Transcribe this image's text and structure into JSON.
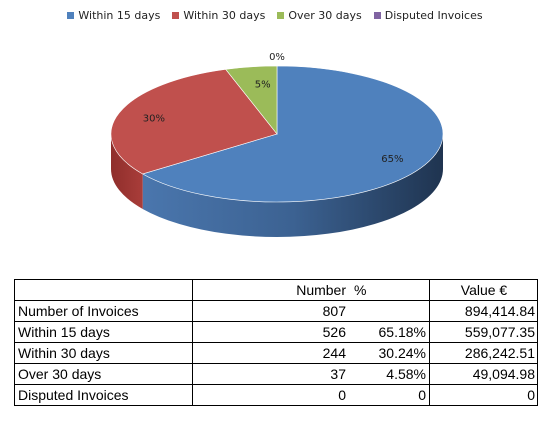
{
  "chart_data": {
    "type": "pie",
    "legend_position": "top",
    "slices": [
      {
        "name": "Within 15 days",
        "value": 65,
        "label": "65%",
        "color": "#4F81BD"
      },
      {
        "name": "Within 30 days",
        "value": 30,
        "label": "30%",
        "color": "#C0504D"
      },
      {
        "name": "Over 30 days",
        "value": 5,
        "label": "5%",
        "color": "#9BBB59"
      },
      {
        "name": "Disputed Invoices",
        "value": 0,
        "label": "0%",
        "color": "#8064A2"
      }
    ]
  },
  "table": {
    "headers": [
      "",
      "Number",
      "%",
      "Value €"
    ],
    "rows": [
      [
        "Number of Invoices",
        "807",
        "",
        "894,414.84"
      ],
      [
        "Within 15 days",
        "526",
        "65.18%",
        "559,077.35"
      ],
      [
        "Within 30 days",
        "244",
        "30.24%",
        "286,242.51"
      ],
      [
        "Over 30 days",
        "37",
        "4.58%",
        "49,094.98"
      ],
      [
        "Disputed Invoices",
        "0",
        "0",
        "0"
      ]
    ]
  }
}
